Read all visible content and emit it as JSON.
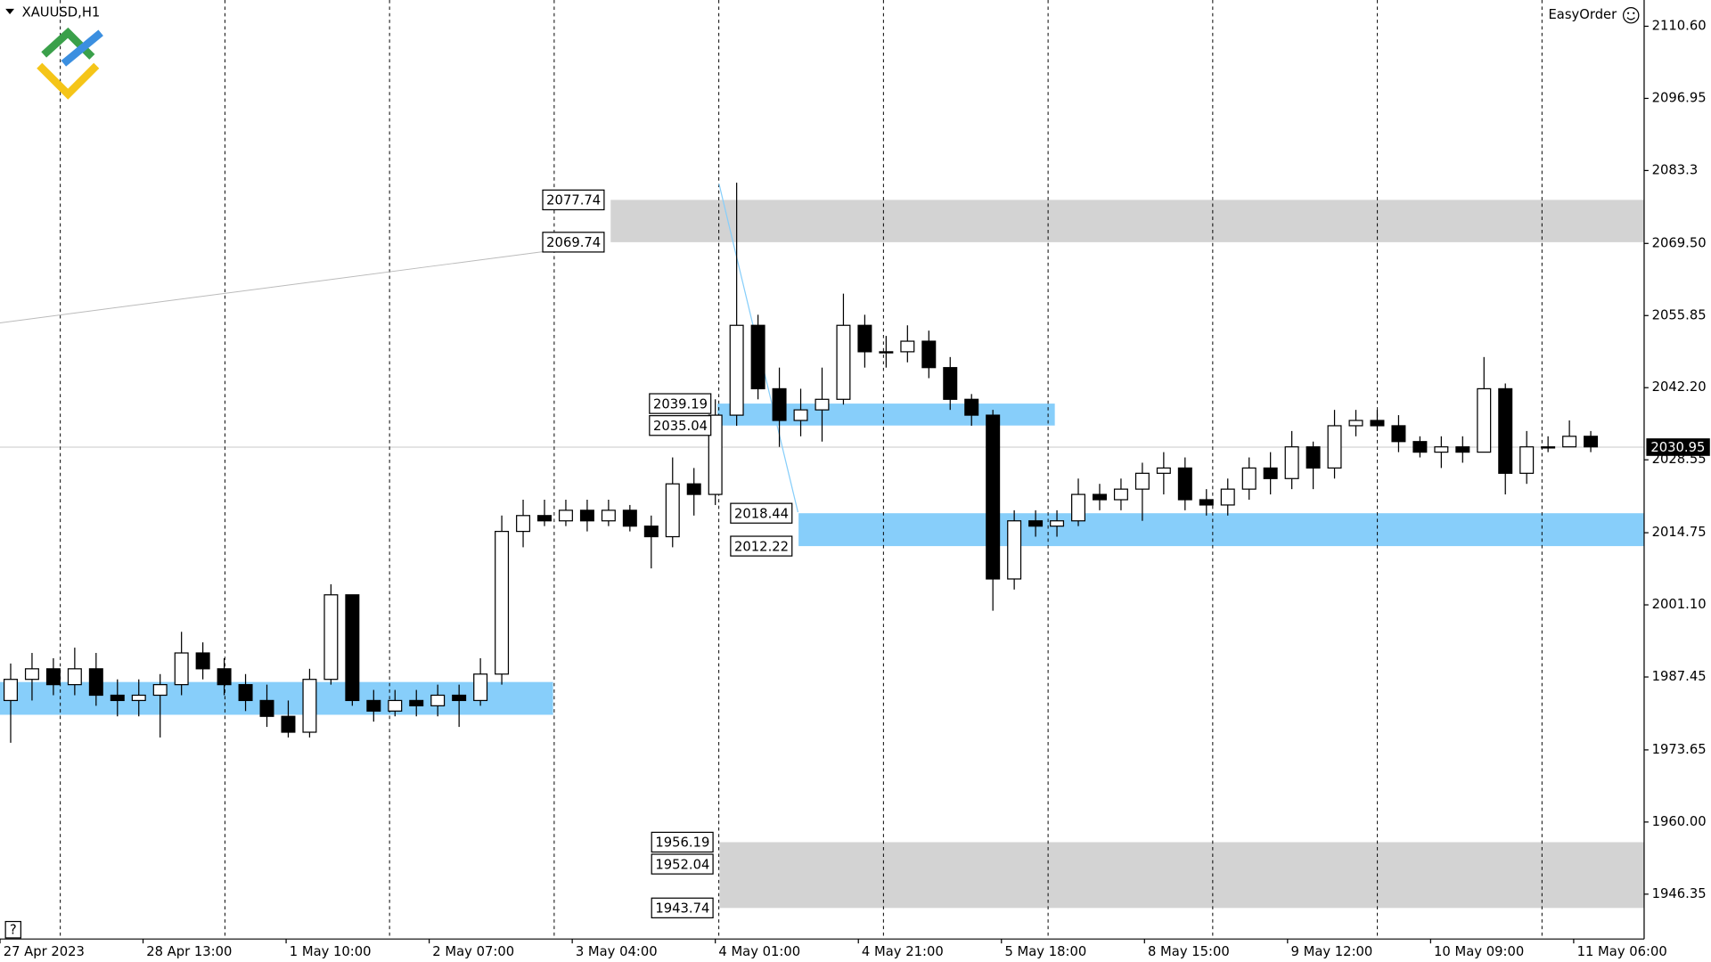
{
  "chart_data": {
    "type": "candlestick",
    "symbol": "XAUUSD,H1",
    "panel_label": "EasyOrder",
    "help_button": "?",
    "ylim": [
      1937.86,
      2115.57
    ],
    "yticks": [
      {
        "value": 2110.6,
        "label": "2110.60"
      },
      2096.95,
      2083.3,
      {
        "value": 2069.5,
        "label": "2069.50"
      },
      2055.85,
      {
        "value": 2042.2,
        "label": "2042.20"
      },
      2028.55,
      2014.75,
      {
        "value": 2001.1,
        "label": "2001.10"
      },
      1987.45,
      1973.65,
      {
        "value": 1960,
        "label": "1960.00"
      },
      1946.35
    ],
    "xlim": [
      0,
      77
    ],
    "xticks": [
      {
        "value": 0,
        "label": "27 Apr 2023"
      },
      {
        "value": 6.7,
        "label": "28 Apr 13:00"
      },
      {
        "value": 13.4,
        "label": "1 May 10:00"
      },
      {
        "value": 20.1,
        "label": "2 May 07:00"
      },
      {
        "value": 26.8,
        "label": "3 May 04:00"
      },
      {
        "value": 33.5,
        "label": "4 May 01:00"
      },
      {
        "value": 40.2,
        "label": "4 May 21:00"
      },
      {
        "value": 46.9,
        "label": "5 May 18:00"
      },
      {
        "value": 53.6,
        "label": "8 May 15:00"
      },
      {
        "value": 60.3,
        "label": "9 May 12:00"
      },
      {
        "value": 67,
        "label": "10 May 09:00"
      },
      {
        "value": 73.7,
        "label": "11 May 06:00"
      }
    ],
    "current_price": 2030.95,
    "up_color": "#ffffff",
    "down_color": "#000000",
    "open": [
      1983,
      1987,
      1989,
      1986,
      1989,
      1984,
      1983,
      1984,
      1986,
      1992,
      1989,
      1986,
      1983,
      1980,
      1977,
      1987,
      2003,
      1983,
      1981,
      1983,
      1982,
      1984,
      1983,
      1988,
      2015,
      2018,
      2017,
      2019,
      2017,
      2019,
      2016,
      2014,
      2024,
      2022,
      2037,
      2054,
      2042,
      2036,
      2038,
      2040,
      2054,
      2049,
      2049,
      2051,
      2046,
      2040,
      2037,
      2006,
      2017,
      2016,
      2017,
      2022,
      2021,
      2023,
      2026,
      2027,
      2021,
      2020,
      2023,
      2027,
      2025,
      2031,
      2027,
      2035,
      2036,
      2035,
      2032,
      2030,
      2031,
      2030,
      2042,
      2026,
      2031,
      2031,
      2033
    ],
    "high": [
      1990,
      1992,
      1991,
      1993,
      1992,
      1987,
      1987,
      1988,
      1996,
      1994,
      1991,
      1988,
      1986,
      1983,
      1989,
      2005,
      2003,
      1985,
      1985,
      1985,
      1986,
      1986,
      1991,
      2018,
      2021,
      2021,
      2021,
      2021,
      2021,
      2020,
      2018,
      2029,
      2027,
      2040,
      2081,
      2056,
      2046,
      2042,
      2046,
      2060,
      2056,
      2052,
      2054,
      2053,
      2048,
      2041,
      2038,
      2019,
      2019,
      2019,
      2025,
      2024,
      2025,
      2028,
      2030,
      2029,
      2023,
      2025,
      2029,
      2030,
      2034,
      2032,
      2038,
      2038,
      2038,
      2037,
      2033,
      2033,
      2033,
      2048,
      2043,
      2034,
      2033,
      2036,
      2034
    ],
    "low": [
      1975,
      1983,
      1984,
      1984,
      1982,
      1980,
      1980,
      1976,
      1984,
      1987,
      1984,
      1981,
      1978,
      1976,
      1976,
      1986,
      1982,
      1979,
      1980,
      1980,
      1980,
      1978,
      1982,
      1986,
      2012,
      2016,
      2016,
      2015,
      2016,
      2015,
      2008,
      2012,
      2018,
      2020,
      2035,
      2040,
      2031,
      2033,
      2032,
      2039,
      2046,
      2046,
      2047,
      2044,
      2038,
      2035,
      2000,
      2004,
      2014,
      2014,
      2016,
      2019,
      2019,
      2017,
      2022,
      2019,
      2018,
      2018,
      2021,
      2022,
      2023,
      2023,
      2025,
      2033,
      2034,
      2030,
      2029,
      2027,
      2028,
      2030,
      2022,
      2024,
      2030,
      2032,
      2030
    ],
    "close": [
      1987,
      1989,
      1986,
      1989,
      1984,
      1983,
      1984,
      1986,
      1992,
      1989,
      1986,
      1983,
      1980,
      1977,
      1987,
      2003,
      1983,
      1981,
      1983,
      1982,
      1984,
      1983,
      1988,
      2015,
      2018,
      2017,
      2019,
      2017,
      2019,
      2016,
      2014,
      2024,
      2022,
      2037,
      2054,
      2042,
      2036,
      2038,
      2040,
      2054,
      2049,
      2049,
      2051,
      2046,
      2040,
      2037,
      2006,
      2017,
      2016,
      2017,
      2022,
      2021,
      2023,
      2026,
      2027,
      2021,
      2020,
      2023,
      2027,
      2025,
      2031,
      2027,
      2035,
      2036,
      2035,
      2032,
      2030,
      2031,
      2030,
      2042,
      2026,
      2031,
      2031,
      2033,
      2031
    ],
    "zones": [
      {
        "top": 2077.74,
        "bottom": 2069.74,
        "x0": 28.6,
        "x1": 77,
        "color": "#d3d3d3",
        "labeled": true
      },
      {
        "top": 2039.19,
        "bottom": 2035.04,
        "x0": 33.6,
        "x1": 49.4,
        "color": "#87cefa",
        "labeled": true
      },
      {
        "top": 2018.44,
        "bottom": 2012.22,
        "x0": 37.4,
        "x1": 77,
        "color": "#87cefa",
        "labeled": true
      },
      {
        "top": 1956.19,
        "bottom": 1943.74,
        "x0": 33.7,
        "x1": 77,
        "color": "#d3d3d3",
        "labeled": true,
        "mid_label": 1952.04
      },
      {
        "top": 1986.5,
        "bottom": 1980.3,
        "x0": 0,
        "x1": 25.9,
        "color": "#87cefa",
        "labeled": false
      }
    ]
  }
}
